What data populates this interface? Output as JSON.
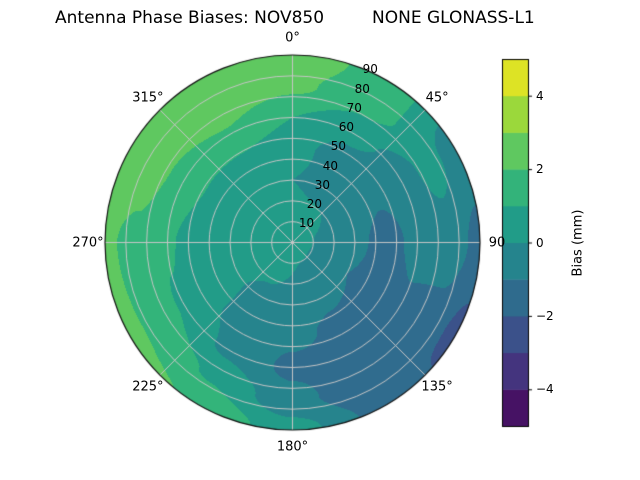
{
  "chart_data": {
    "type": "polar_contour",
    "title_left": "Antenna Phase Biases: NOV850",
    "title_right": "NONE GLONASS-L1",
    "angular_ticks": [
      {
        "angle": 0,
        "label": "0°"
      },
      {
        "angle": 45,
        "label": "45°"
      },
      {
        "angle": 90,
        "label": "90"
      },
      {
        "angle": 135,
        "label": "135°"
      },
      {
        "angle": 180,
        "label": "180°"
      },
      {
        "angle": 225,
        "label": "225°"
      },
      {
        "angle": 270,
        "label": "270°"
      },
      {
        "angle": 315,
        "label": "315°"
      }
    ],
    "radial_ticks": [
      10,
      20,
      30,
      40,
      50,
      60,
      70,
      80,
      90
    ],
    "radial_label_angle_deg": 22.5,
    "rmax": 90,
    "grid_color": "#c6c6c6",
    "outline_color": "#111111",
    "background": "#ffffff",
    "colorbar": {
      "label": "Bias (mm)",
      "ticks": [
        -4,
        -2,
        0,
        2,
        4
      ],
      "tick_labels": [
        "−4",
        "−2",
        "0",
        "2",
        "4"
      ],
      "min": -5,
      "max": 5,
      "levels_step": 1
    },
    "colormap": {
      "name": "viridis",
      "stops": [
        "#440154",
        "#482475",
        "#414487",
        "#355f8d",
        "#2a788e",
        "#21918c",
        "#22a884",
        "#44bf70",
        "#7ad151",
        "#bddf26",
        "#fde725"
      ]
    },
    "field": {
      "units": "mm",
      "azimuth_deg": [
        0,
        30,
        60,
        90,
        120,
        150,
        180,
        210,
        240,
        270,
        300,
        330
      ],
      "zenith_deg": [
        0,
        15,
        30,
        45,
        60,
        75,
        90
      ],
      "bias_mm": [
        [
          0.5,
          0.3,
          0.0,
          0.4,
          1.0,
          2.2,
          2.7
        ],
        [
          0.5,
          0.2,
          -0.3,
          -0.5,
          0.3,
          1.3,
          1.6
        ],
        [
          0.5,
          0.0,
          -0.6,
          -0.9,
          -0.5,
          0.3,
          -0.4
        ],
        [
          0.5,
          -0.2,
          -0.8,
          -1.3,
          -0.8,
          -0.4,
          -1.3
        ],
        [
          0.5,
          -0.3,
          -1.0,
          -1.5,
          -1.1,
          -1.4,
          -2.3
        ],
        [
          0.5,
          -0.2,
          -0.8,
          -1.2,
          -1.6,
          -1.9,
          -1.4
        ],
        [
          0.5,
          0.0,
          -0.5,
          -0.8,
          -1.2,
          -0.7,
          0.4
        ],
        [
          0.5,
          0.2,
          -0.2,
          -0.4,
          -0.2,
          0.9,
          1.9
        ],
        [
          0.5,
          0.3,
          0.1,
          0.3,
          0.9,
          1.7,
          2.3
        ],
        [
          0.5,
          0.4,
          0.3,
          0.5,
          1.1,
          1.8,
          2.1
        ],
        [
          0.5,
          0.4,
          0.5,
          0.9,
          1.6,
          2.4,
          2.7
        ],
        [
          0.5,
          0.4,
          0.3,
          0.8,
          1.9,
          2.7,
          2.9
        ]
      ]
    }
  }
}
